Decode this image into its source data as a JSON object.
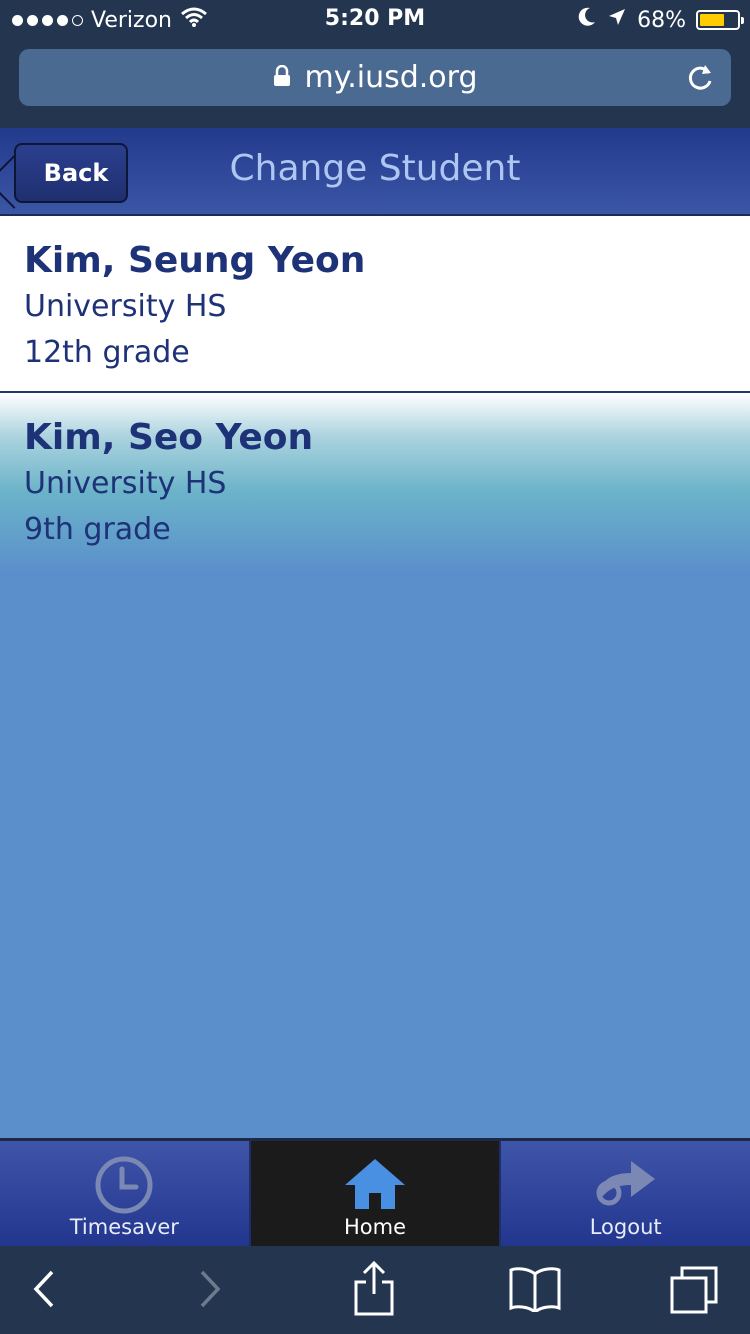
{
  "status_bar": {
    "carrier": "Verizon",
    "time": "5:20 PM",
    "battery": "68%",
    "battery_level": 0.68
  },
  "browser": {
    "url": "my.iusd.org"
  },
  "header": {
    "back_label": "Back",
    "title": "Change Student"
  },
  "students": [
    {
      "name": "Kim, Seung Yeon",
      "school": "University HS",
      "grade": "12th grade"
    },
    {
      "name": "Kim, Seo Yeon",
      "school": "University HS",
      "grade": "9th grade"
    }
  ],
  "tabs": [
    {
      "label": "Timesaver",
      "icon": "clock-icon"
    },
    {
      "label": "Home",
      "icon": "home-icon",
      "active": true
    },
    {
      "label": "Logout",
      "icon": "logout-arrow-icon"
    }
  ],
  "colors": {
    "header": "#223a8c",
    "content_bg": "#5a8fcb",
    "text_primary": "#1e3278",
    "title": "#aec6f2",
    "battery_fill": "#ffcc00"
  }
}
